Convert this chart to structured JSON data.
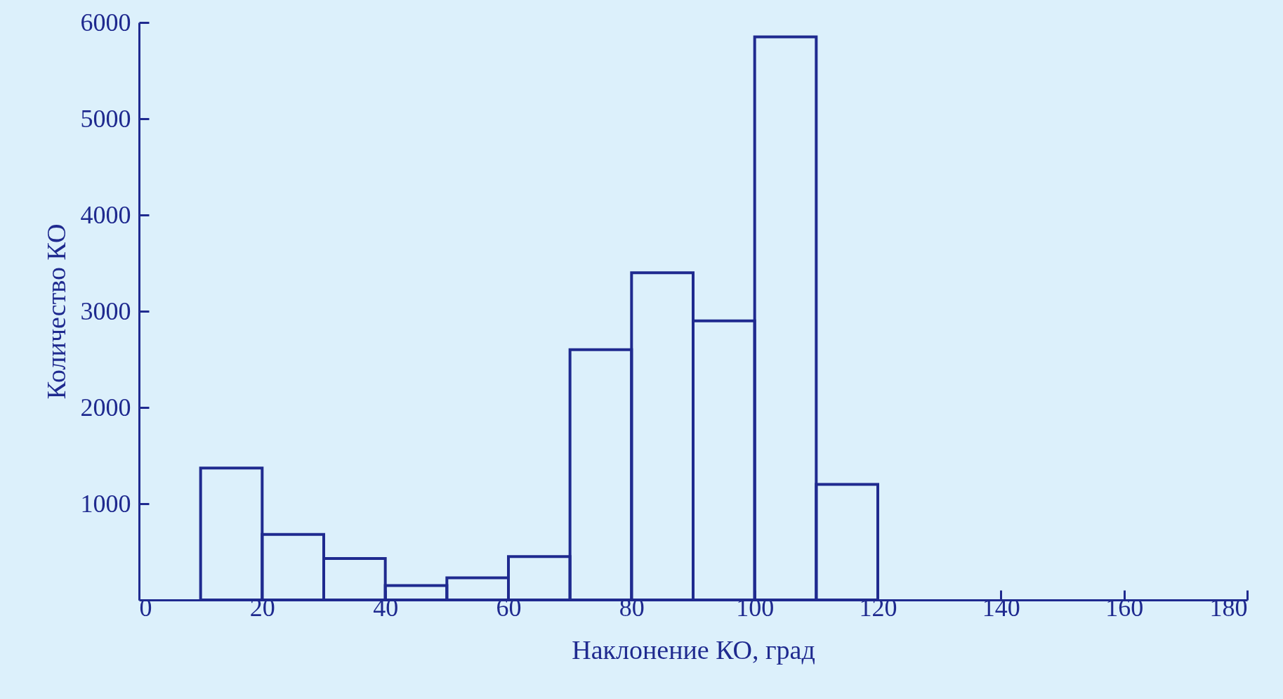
{
  "chart_data": {
    "type": "histogram",
    "xlabel": "Наклонение КО, град",
    "ylabel": "Количество КО",
    "bins": [
      10,
      20,
      30,
      40,
      50,
      60,
      70,
      80,
      90,
      100,
      110,
      120
    ],
    "values": [
      1370,
      680,
      430,
      150,
      230,
      450,
      2600,
      3400,
      2900,
      5850,
      1200
    ],
    "color": "#1f2a8f",
    "xlim": [
      0,
      180
    ],
    "xticks": [
      0,
      20,
      40,
      60,
      80,
      100,
      120,
      140,
      160,
      180
    ],
    "ylim": [
      0,
      6000
    ],
    "yticks": [
      1000,
      2000,
      3000,
      4000,
      5000,
      6000
    ],
    "grid": false
  }
}
